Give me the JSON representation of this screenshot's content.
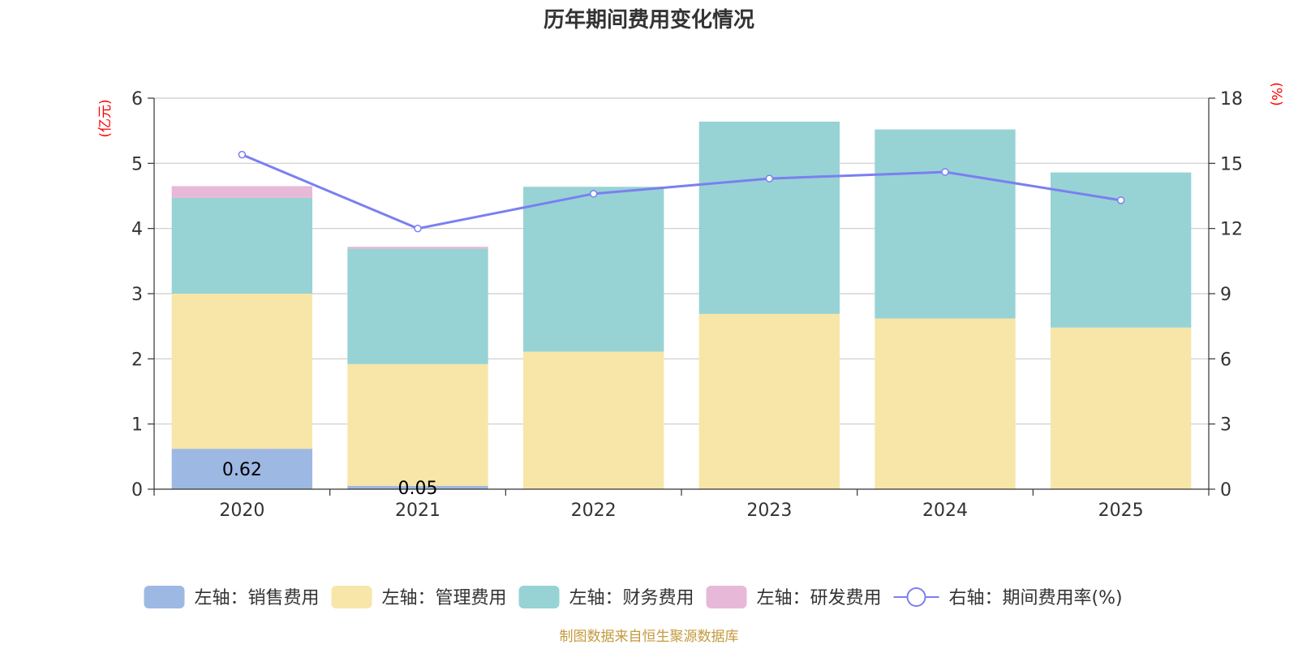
{
  "chart_data": {
    "type": "bar",
    "title": "历年期间费用变化情况",
    "categories": [
      "2020",
      "2021",
      "2022",
      "2023",
      "2024",
      "2025"
    ],
    "left_axis": {
      "unit": "(亿元)",
      "ylim": [
        0,
        6
      ],
      "ticks": [
        "0",
        "1",
        "2",
        "3",
        "4",
        "5",
        "6"
      ]
    },
    "right_axis": {
      "unit": "(%)",
      "ylim": [
        0,
        18
      ],
      "ticks": [
        "0",
        "3",
        "6",
        "9",
        "12",
        "15",
        "18"
      ]
    },
    "grid": true,
    "stacked": true,
    "series": [
      {
        "name": "左轴：销售费用",
        "type": "bar",
        "axis": "left",
        "color": "#9db8e2",
        "values": [
          0.62,
          0.05,
          0,
          0,
          0,
          0
        ]
      },
      {
        "name": "左轴：管理费用",
        "type": "bar",
        "axis": "left",
        "color": "#f7e6a8",
        "values": [
          2.38,
          1.87,
          2.11,
          2.69,
          2.62,
          2.48
        ]
      },
      {
        "name": "左轴：财务费用",
        "type": "bar",
        "axis": "left",
        "color": "#97d3d4",
        "values": [
          1.47,
          1.77,
          2.53,
          2.95,
          2.9,
          2.38
        ]
      },
      {
        "name": "左轴：研发费用",
        "type": "bar",
        "axis": "left",
        "color": "#e8b8d8",
        "values": [
          0.18,
          0.03,
          0,
          0,
          0,
          0
        ]
      },
      {
        "name": "右轴：期间费用率(%)",
        "type": "line",
        "axis": "right",
        "color": "#7b7ff0",
        "values": [
          15.4,
          12.0,
          13.6,
          14.3,
          14.6,
          13.3
        ]
      }
    ],
    "data_labels": [
      {
        "category": "2020",
        "series": "左轴：销售费用",
        "text": "0.62"
      },
      {
        "category": "2021",
        "series": "左轴：销售费用",
        "text": "0.05"
      }
    ],
    "legend_position": "bottom"
  },
  "source": "制图数据来自恒生聚源数据库"
}
